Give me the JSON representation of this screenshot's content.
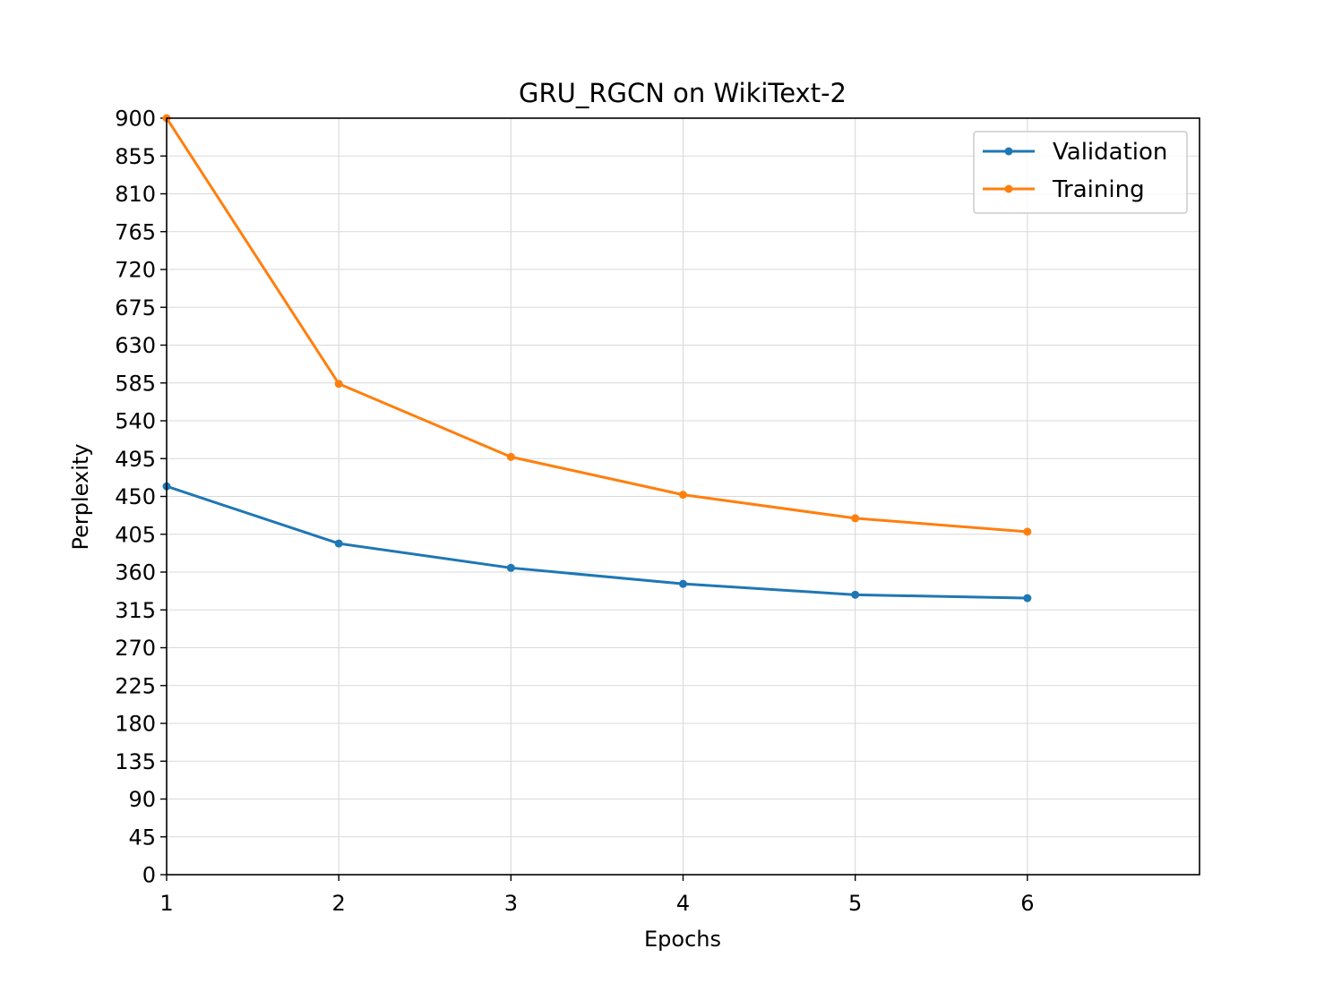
{
  "chart_data": {
    "type": "line",
    "title": "GRU_RGCN on WikiText-2",
    "xlabel": "Epochs",
    "ylabel": "Perplexity",
    "x": [
      1,
      2,
      3,
      4,
      5,
      6
    ],
    "xlim": [
      1,
      7
    ],
    "ylim": [
      0,
      900
    ],
    "xticks": [
      1,
      2,
      3,
      4,
      5,
      6
    ],
    "yticks": [
      0,
      45,
      90,
      135,
      180,
      225,
      270,
      315,
      360,
      405,
      450,
      495,
      540,
      585,
      630,
      675,
      720,
      765,
      810,
      855,
      900
    ],
    "grid": true,
    "legend_position": "top-right",
    "series": [
      {
        "name": "Validation",
        "color": "#1f77b4",
        "values": [
          462,
          394,
          365,
          346,
          333,
          329
        ]
      },
      {
        "name": "Training",
        "color": "#ff7f0e",
        "values": [
          900,
          584,
          497,
          452,
          424,
          408
        ]
      }
    ]
  }
}
